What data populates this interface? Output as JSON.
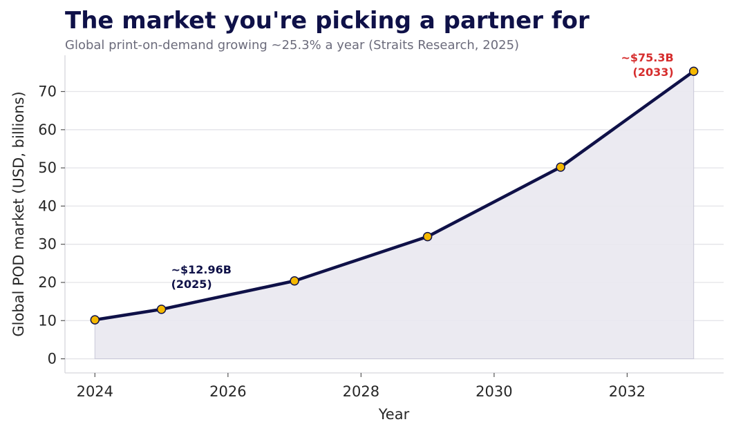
{
  "chart_data": {
    "type": "area",
    "title": "The market you're picking a partner for",
    "subtitle": "Global print-on-demand growing ~25.3% a year (Straits Research, 2025)",
    "xlabel": "Year",
    "ylabel": "Global POD market (USD, billions)",
    "x": [
      2024,
      2025,
      2027,
      2029,
      2031,
      2033
    ],
    "values": [
      10.2,
      12.96,
      20.4,
      32.0,
      50.2,
      75.3
    ],
    "xlim": [
      2023.55,
      2033.45
    ],
    "ylim": [
      -3.7,
      79.5
    ],
    "xticks": [
      2024,
      2026,
      2028,
      2030,
      2032
    ],
    "yticks": [
      0,
      10,
      20,
      30,
      40,
      50,
      60,
      70
    ],
    "grid": "horizontal",
    "annotations": [
      {
        "line1": "~$12.96B",
        "line2": "(2025)",
        "x": 2025,
        "y": 12.96,
        "color": "#0f1148"
      },
      {
        "line1": "~$75.3B",
        "line2": "(2033)",
        "x": 2033,
        "y": 75.3,
        "color": "#d62d2d"
      }
    ],
    "colors": {
      "line": "#0f1148",
      "marker": "#f5b800",
      "fill": "#e9e8f0",
      "grid": "#e3e3e8"
    }
  }
}
